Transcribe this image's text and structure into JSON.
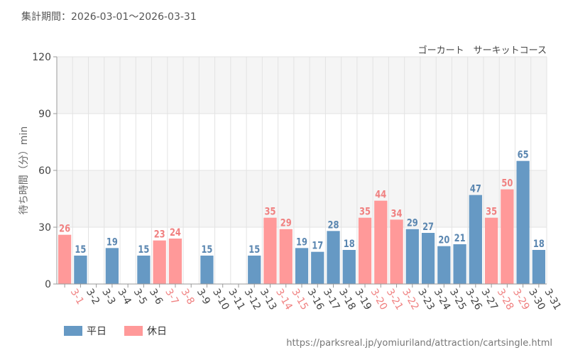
{
  "header": {
    "period_text": "集計期間：2026-03-01～2026-03-31"
  },
  "colors": {
    "weekday": "#6699c4",
    "holiday": "#ff9999",
    "weekday_label": "#5a86b0",
    "holiday_label": "#f08080",
    "band": "#f5f5f5",
    "grid": "#e3e3e3"
  },
  "chart_data": {
    "type": "bar",
    "title": "ゴーカート　サーキットコース",
    "xlabel": "",
    "ylabel": "待ち時間（分）min",
    "ylim": [
      0,
      120
    ],
    "yticks": [
      0,
      30,
      60,
      90,
      120
    ],
    "grid": true,
    "legend_position": "bottom-left",
    "categories": [
      "3-1",
      "3-2",
      "3-3",
      "3-4",
      "3-5",
      "3-6",
      "3-7",
      "3-8",
      "3-9",
      "3-10",
      "3-11",
      "3-12",
      "3-13",
      "3-14",
      "3-15",
      "3-16",
      "3-17",
      "3-18",
      "3-19",
      "3-20",
      "3-21",
      "3-22",
      "3-23",
      "3-24",
      "3-25",
      "3-26",
      "3-27",
      "3-28",
      "3-29",
      "3-30",
      "3-31"
    ],
    "values": [
      26,
      15,
      null,
      19,
      null,
      15,
      23,
      24,
      null,
      15,
      null,
      null,
      15,
      35,
      29,
      19,
      17,
      28,
      18,
      35,
      44,
      34,
      29,
      27,
      20,
      21,
      47,
      35,
      50,
      65,
      18
    ],
    "day_types": [
      "holiday",
      "weekday",
      "weekday",
      "weekday",
      "weekday",
      "weekday",
      "holiday",
      "holiday",
      "weekday",
      "weekday",
      "weekday",
      "weekday",
      "weekday",
      "holiday",
      "holiday",
      "weekday",
      "weekday",
      "weekday",
      "weekday",
      "holiday",
      "holiday",
      "holiday",
      "weekday",
      "weekday",
      "weekday",
      "weekday",
      "weekday",
      "holiday",
      "holiday",
      "weekday",
      "weekday"
    ],
    "legend": [
      {
        "key": "weekday",
        "label": "平日"
      },
      {
        "key": "holiday",
        "label": "休日"
      }
    ]
  },
  "footer": {
    "source_url": "https://parksreal.jp/yomiuriland/attraction/cartsingle.html"
  }
}
